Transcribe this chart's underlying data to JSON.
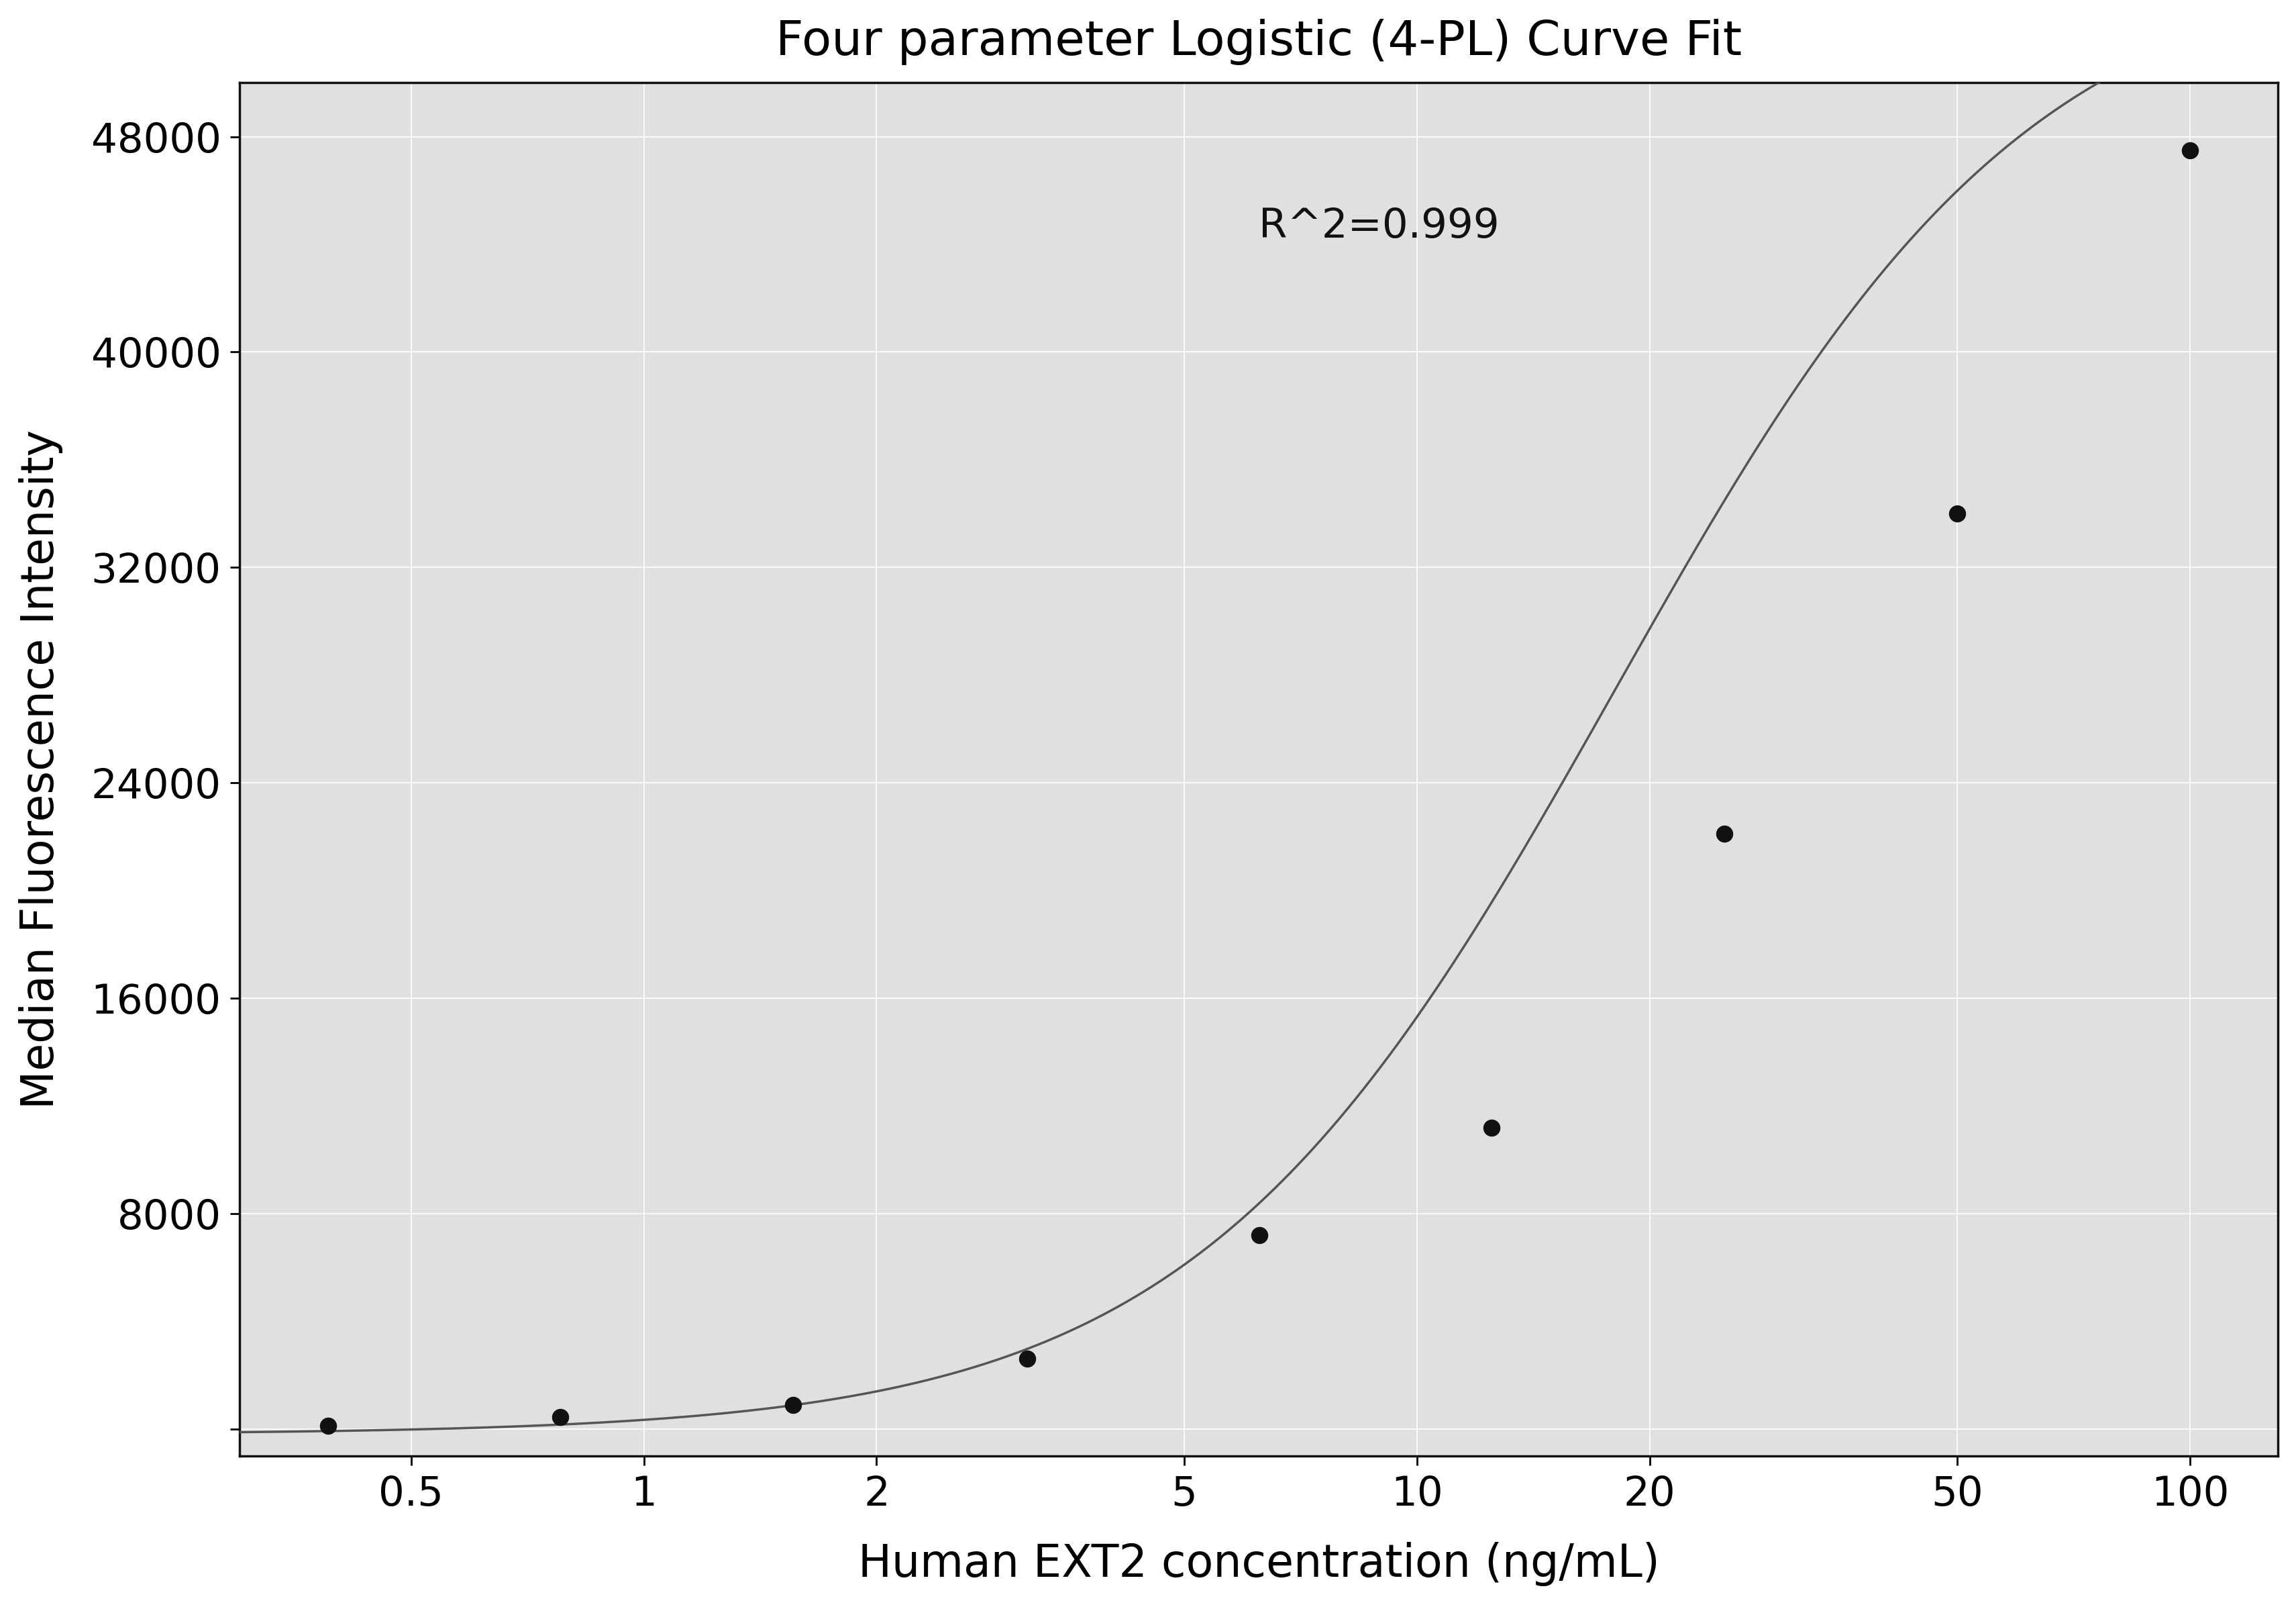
{
  "title": "Four parameter Logistic (4-PL) Curve Fit",
  "xlabel": "Human EXT2 concentration (ng/mL)",
  "ylabel": "Median Fluorescence Intensity",
  "annotation": "R^2=0.999",
  "x_data": [
    0.39,
    0.78,
    1.56,
    3.13,
    6.25,
    12.5,
    25,
    50,
    100
  ],
  "y_data": [
    120,
    450,
    900,
    2600,
    7200,
    11200,
    22100,
    34000,
    47500
  ],
  "xscale": "log",
  "xlim": [
    0.3,
    130
  ],
  "ylim": [
    -1000,
    50000
  ],
  "yticks": [
    0,
    8000,
    16000,
    24000,
    32000,
    40000,
    48000
  ],
  "xticks": [
    0.5,
    1,
    2,
    5,
    10,
    20,
    50,
    100
  ],
  "xtick_labels": [
    "0.5",
    "1",
    "2",
    "5",
    "10",
    "20",
    "50",
    "100"
  ],
  "background_color": "#ffffff",
  "plot_bg_color": "#e0e0e0",
  "line_color": "#555555",
  "marker_color": "#111111",
  "grid_color": "#ffffff",
  "title_fontsize": 52,
  "label_fontsize": 48,
  "tick_fontsize": 44,
  "annotation_fontsize": 44,
  "4pl_params": [
    -200,
    55000,
    18.0,
    1.6
  ]
}
